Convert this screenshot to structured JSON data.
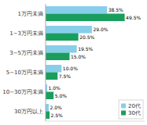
{
  "chart_data": {
    "type": "bar",
    "orientation": "horizontal",
    "categories": [
      "1万円未満",
      "1~3万円未満",
      "3~5万円未満",
      "5~10万円未満",
      "10~30万円未満",
      "30万円以上"
    ],
    "series": [
      {
        "name": "20代",
        "color": "#87ceeb",
        "values": [
          38.5,
          29.0,
          19.5,
          10.0,
          1.0,
          2.0
        ],
        "value_labels": [
          "38.5%",
          "29.0%",
          "19.5%",
          "10.0%",
          "1.0%",
          "2.0%"
        ]
      },
      {
        "name": "30代",
        "color": "#1a9e5e",
        "values": [
          49.5,
          20.5,
          15.0,
          7.5,
          5.0,
          2.5
        ],
        "value_labels": [
          "49.5%",
          "20.5%",
          "15.0%",
          "7.5%",
          "5.0%",
          "2.5%"
        ]
      }
    ],
    "xlim": [
      0,
      62
    ],
    "grid": false,
    "legend": "lower right",
    "data_labels": true,
    "tick_labels": "y"
  }
}
